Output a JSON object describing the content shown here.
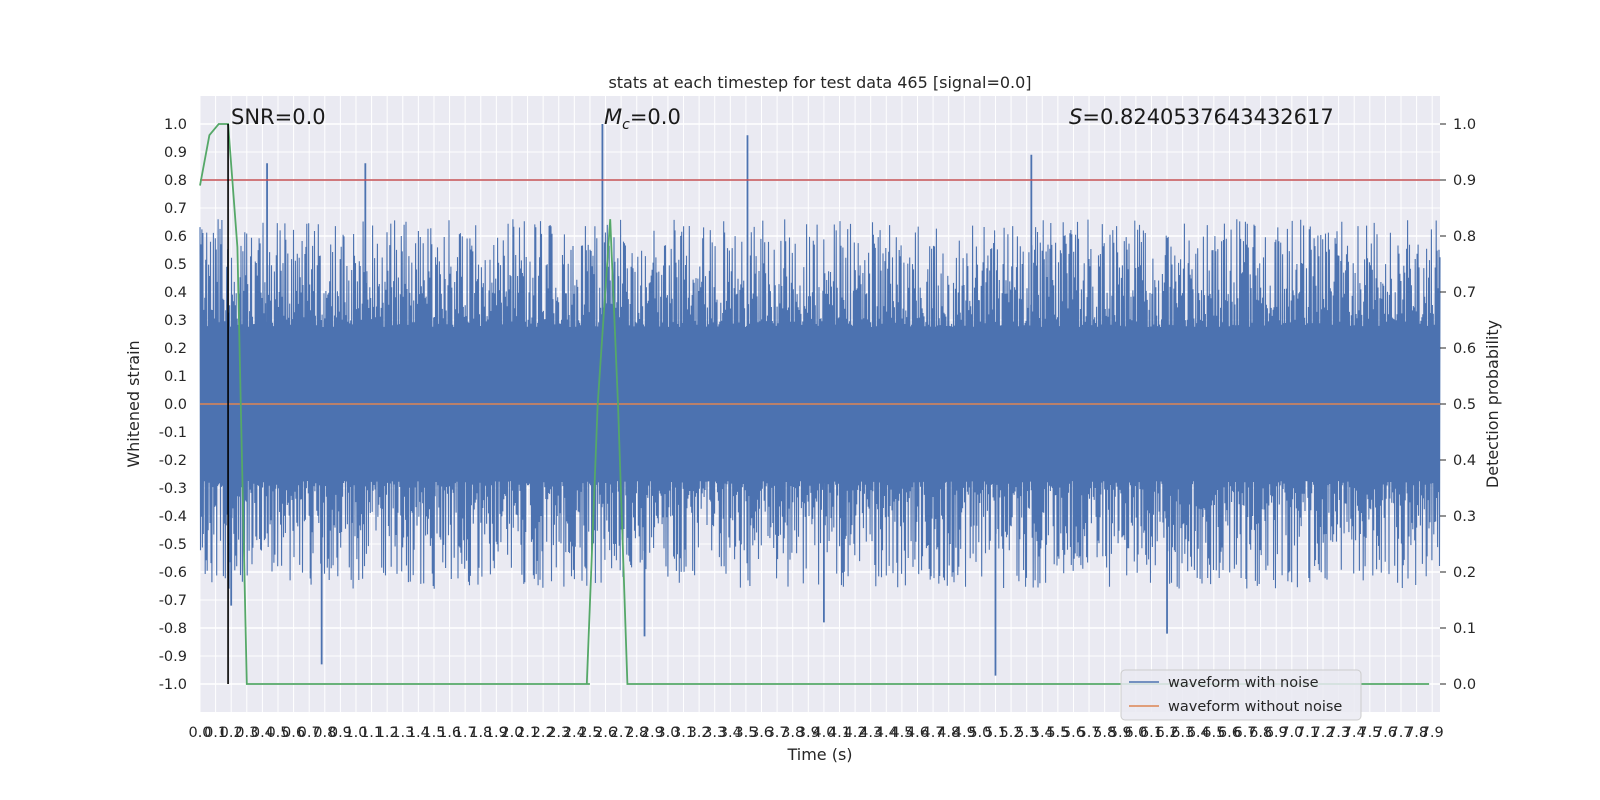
{
  "chart_data": {
    "type": "line",
    "title": "stats at each timestep for test data 465 [signal=0.0]",
    "xlabel": "Time (s)",
    "ylabel": "Whitened strain",
    "y2label": "Detection probability",
    "xlim": [
      0.0,
      7.95
    ],
    "ylim": [
      -1.1,
      1.1
    ],
    "y2lim": [
      -0.05,
      1.05
    ],
    "x_ticks": [
      0.0,
      0.1,
      0.2,
      0.3,
      0.4,
      0.5,
      0.6,
      0.7,
      0.8,
      0.9,
      1.0,
      1.1,
      1.2,
      1.3,
      1.4,
      1.5,
      1.6,
      1.7,
      1.8,
      1.9,
      2.0,
      2.1,
      2.2,
      2.3,
      2.4,
      2.5,
      2.6,
      2.7,
      2.8,
      2.9,
      3.0,
      3.1,
      3.2,
      3.3,
      3.4,
      3.5,
      3.6,
      3.7,
      3.8,
      3.9,
      4.0,
      4.1,
      4.2,
      4.3,
      4.4,
      4.5,
      4.6,
      4.7,
      4.8,
      4.9,
      5.0,
      5.1,
      5.2,
      5.3,
      5.4,
      5.5,
      5.6,
      5.7,
      5.8,
      5.9,
      6.0,
      6.1,
      6.2,
      6.3,
      6.4,
      6.5,
      6.6,
      6.7,
      6.8,
      6.9,
      7.0,
      7.1,
      7.2,
      7.3,
      7.4,
      7.5,
      7.6,
      7.7,
      7.8,
      7.9
    ],
    "y_ticks": [
      -1.0,
      -0.9,
      -0.8,
      -0.7,
      -0.6,
      -0.5,
      -0.4,
      -0.3,
      -0.2,
      -0.1,
      0.0,
      0.1,
      0.2,
      0.3,
      0.4,
      0.5,
      0.6,
      0.7,
      0.8,
      0.9,
      1.0
    ],
    "y2_ticks": [
      0.0,
      0.1,
      0.2,
      0.3,
      0.4,
      0.5,
      0.6,
      0.7,
      0.8,
      0.9,
      1.0
    ],
    "grid": true,
    "legend": {
      "placement": "lower-right",
      "entries": [
        {
          "label": "waveform with noise",
          "color": "#4c72b0"
        },
        {
          "label": "waveform without noise",
          "color": "#dd8452"
        }
      ]
    },
    "annotations": {
      "snr": "SNR=0.0",
      "mc_symbol": "M",
      "mc_sub": "c",
      "mc_value": "=0.0",
      "s_symbol": "S",
      "s_value": "=0.8240537643432617"
    },
    "threshold": {
      "y2": 0.9,
      "color": "#c44e52"
    },
    "marker_line": {
      "x": 0.18,
      "color": "#000000"
    },
    "series": [
      {
        "name": "waveform with noise",
        "axis": "left",
        "color": "#4c72b0",
        "peaks_pos": [
          [
            0.43,
            0.86
          ],
          [
            1.06,
            0.86
          ],
          [
            3.51,
            0.96
          ],
          [
            5.33,
            0.89
          ],
          [
            2.58,
            1.0
          ]
        ],
        "peaks_neg": [
          [
            0.78,
            -0.93
          ],
          [
            5.1,
            -0.97
          ],
          [
            0.2,
            -0.72
          ],
          [
            2.85,
            -0.83
          ],
          [
            6.2,
            -0.82
          ],
          [
            4.0,
            -0.78
          ]
        ],
        "typical_amplitude": 0.55
      },
      {
        "name": "waveform without noise",
        "axis": "left",
        "color": "#dd8452",
        "x": [
          0.0,
          7.95
        ],
        "y": [
          0.0,
          0.0
        ]
      },
      {
        "name": "detection probability",
        "axis": "right",
        "color": "#55a868",
        "x": [
          0.0,
          0.06,
          0.12,
          0.16,
          0.18,
          0.24,
          0.3,
          0.5,
          1.0,
          1.5,
          2.0,
          2.5,
          2.48,
          2.55,
          2.63,
          2.68,
          2.74,
          3.0,
          4.0,
          5.0,
          6.0,
          7.0,
          7.88
        ],
        "y": [
          0.89,
          0.98,
          1.0,
          1.0,
          1.0,
          0.78,
          0.0,
          0.0,
          0.0,
          0.0,
          0.0,
          0.0,
          0.0,
          0.5,
          0.83,
          0.5,
          0.0,
          0.0,
          0.0,
          0.0,
          0.0,
          0.0,
          0.0
        ]
      }
    ]
  }
}
